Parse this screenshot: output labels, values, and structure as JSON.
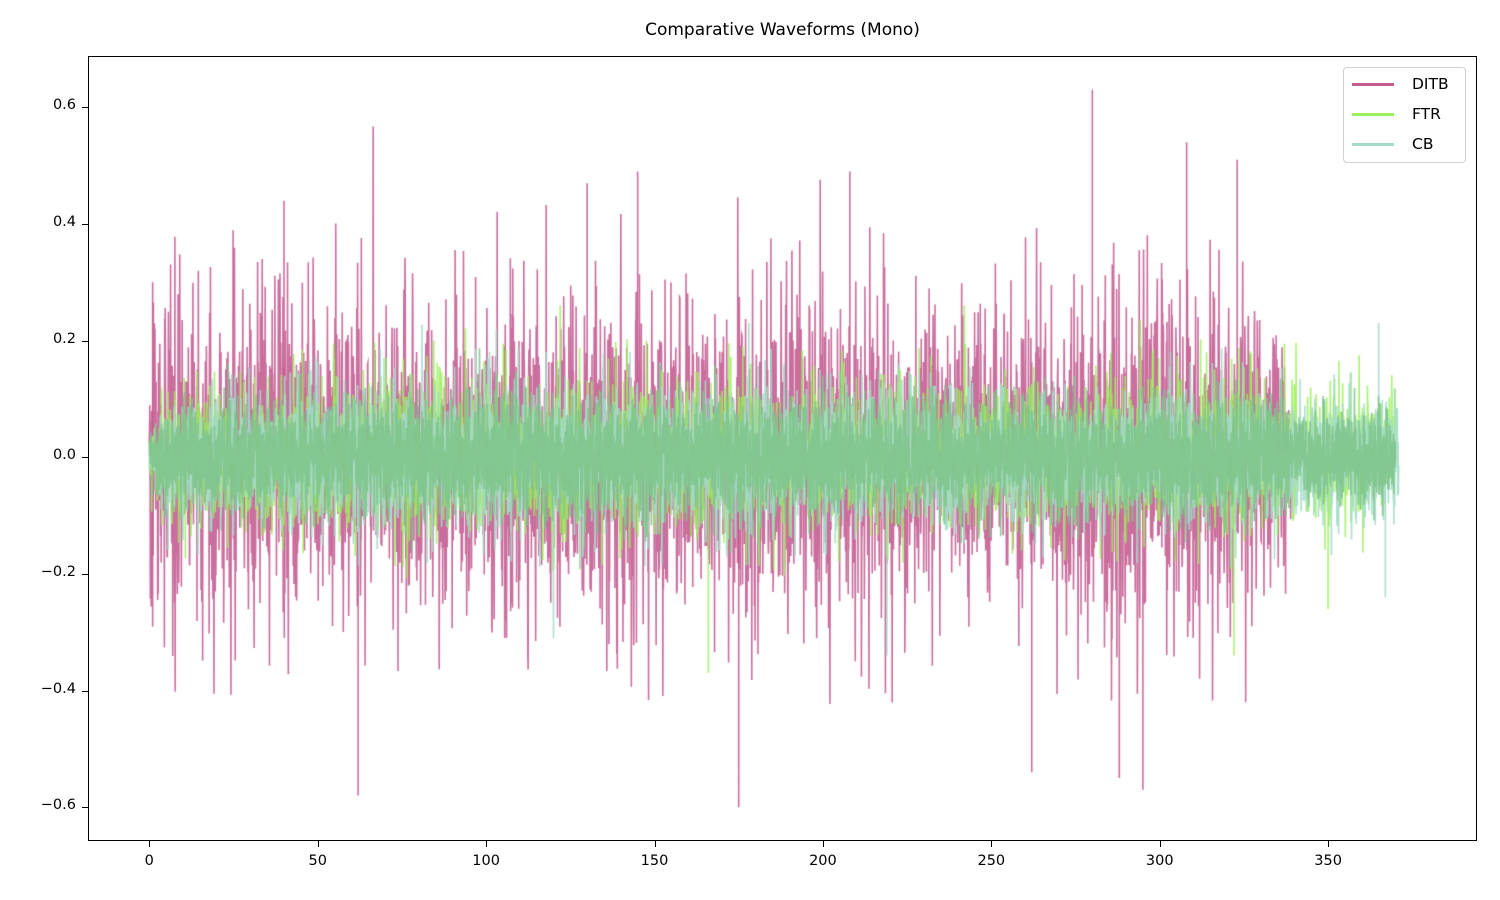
{
  "chart_data": {
    "type": "line",
    "title": "Comparative Waveforms (Mono)",
    "xlabel": "",
    "ylabel": "",
    "xlim": [
      -18.2,
      394.2
    ],
    "ylim": [
      -0.658,
      0.688
    ],
    "grid": false,
    "legend_position": "upper right",
    "x_ticks": [
      0,
      50,
      100,
      150,
      200,
      250,
      300,
      350
    ],
    "x_tick_labels": [
      "0",
      "50",
      "100",
      "150",
      "200",
      "250",
      "300",
      "350"
    ],
    "y_ticks": [
      0.6,
      0.4,
      0.2,
      0.0,
      -0.2,
      -0.4,
      -0.6
    ],
    "y_tick_labels": [
      "0.6",
      "0.4",
      "0.2",
      "0.0",
      "−0.2",
      "−0.4",
      "−0.6"
    ],
    "series": [
      {
        "name": "DITB",
        "color": "#c45e92",
        "alpha": 0.9,
        "x_start": 0,
        "x_end": 340,
        "typical_peak_amplitude": 0.3,
        "max": 0.63,
        "max_at": 280,
        "min": -0.6,
        "min_at": 175,
        "envelope": [
          [
            0,
            0.3
          ],
          [
            5,
            0.3
          ],
          [
            40,
            0.33
          ],
          [
            90,
            0.3
          ],
          [
            110,
            0.35
          ],
          [
            150,
            0.33
          ],
          [
            175,
            0.35
          ],
          [
            200,
            0.33
          ],
          [
            250,
            0.28
          ],
          [
            280,
            0.35
          ],
          [
            300,
            0.38
          ],
          [
            320,
            0.33
          ],
          [
            337,
            0.25
          ],
          [
            340,
            0.0
          ]
        ],
        "notable_peaks": [
          [
            1,
            0.3
          ],
          [
            1,
            -0.29
          ],
          [
            40,
            0.44
          ],
          [
            62,
            -0.58
          ],
          [
            130,
            0.47
          ],
          [
            145,
            0.49
          ],
          [
            175,
            -0.6
          ],
          [
            208,
            0.49
          ],
          [
            262,
            -0.54
          ],
          [
            280,
            0.63
          ],
          [
            288,
            -0.55
          ],
          [
            295,
            -0.57
          ],
          [
            308,
            0.54
          ],
          [
            323,
            0.51
          ]
        ]
      },
      {
        "name": "FTR",
        "color": "#9cef5e",
        "alpha": 0.85,
        "x_start": 0,
        "x_end": 370,
        "typical_peak_amplitude": 0.15,
        "max": 0.26,
        "min": -0.37,
        "min_at": 166,
        "envelope": [
          [
            0,
            0.06
          ],
          [
            5,
            0.14
          ],
          [
            100,
            0.16
          ],
          [
            200,
            0.15
          ],
          [
            280,
            0.14
          ],
          [
            300,
            0.16
          ],
          [
            340,
            0.15
          ],
          [
            370,
            0.12
          ],
          [
            371,
            0.0
          ]
        ],
        "notable_peaks": [
          [
            122,
            0.26
          ],
          [
            166,
            -0.37
          ],
          [
            242,
            0.26
          ],
          [
            322,
            -0.34
          ],
          [
            350,
            -0.26
          ]
        ]
      },
      {
        "name": "CB",
        "color": "#a4dcc9",
        "alpha": 0.9,
        "x_start": 0,
        "x_end": 371,
        "typical_peak_amplitude": 0.14,
        "max": 0.23,
        "min": -0.34,
        "envelope": [
          [
            0,
            0.05
          ],
          [
            5,
            0.13
          ],
          [
            100,
            0.15
          ],
          [
            200,
            0.15
          ],
          [
            280,
            0.13
          ],
          [
            300,
            0.15
          ],
          [
            340,
            0.14
          ],
          [
            371,
            0.12
          ],
          [
            372,
            0.0
          ]
        ],
        "notable_peaks": [
          [
            103,
            0.22
          ],
          [
            120,
            -0.31
          ],
          [
            178,
            0.23
          ],
          [
            219,
            -0.34
          ],
          [
            365,
            0.23
          ],
          [
            367,
            -0.24
          ]
        ]
      }
    ]
  },
  "legend": {
    "items": [
      {
        "label": "DITB",
        "color": "#c45e92"
      },
      {
        "label": "FTR",
        "color": "#9cef5e"
      },
      {
        "label": "CB",
        "color": "#a4dcc9"
      }
    ]
  }
}
